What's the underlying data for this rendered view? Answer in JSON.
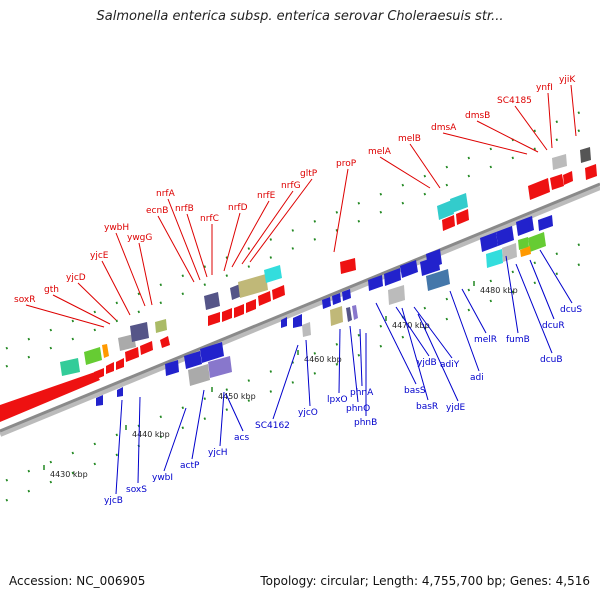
{
  "title": "Salmonella enterica subsp. enterica serovar Choleraesuis str...",
  "footer": {
    "accession": "Accession: NC_006905",
    "summary": "Topology: circular; Length: 4,755,700 bp; Genes: 4,516"
  },
  "colors": {
    "forward_label": "#dd0000",
    "reverse_label": "#0000cc",
    "backbone": "#8a8a8a",
    "tick": "#228822"
  },
  "forward_labels": [
    "soxR",
    "gth",
    "yjcD",
    "yjcE",
    "ywbH",
    "ywgG",
    "ecnB",
    "nrfA",
    "nrfB",
    "nrfC",
    "nrfD",
    "nrfE",
    "nrfG",
    "gltP",
    "proP",
    "melA",
    "melB",
    "dmsA",
    "dmsB",
    "SC4185",
    "ynfI",
    "yjiK"
  ],
  "reverse_labels": [
    "yjcB",
    "soxS",
    "ywbI",
    "actP",
    "yjcH",
    "acs",
    "SC4162",
    "yjcO",
    "lpxO",
    "phnO",
    "phnA",
    "phnB",
    "basS",
    "yjdB",
    "basR",
    "adiY",
    "yjdE",
    "adi",
    "melR",
    "fumB",
    "dcuB",
    "dcuR",
    "dcuS"
  ],
  "ticks": [
    "4430 kbp",
    "4440 kbp",
    "4450 kbp",
    "4460 kbp",
    "4470 kbp",
    "4480 kbp"
  ]
}
